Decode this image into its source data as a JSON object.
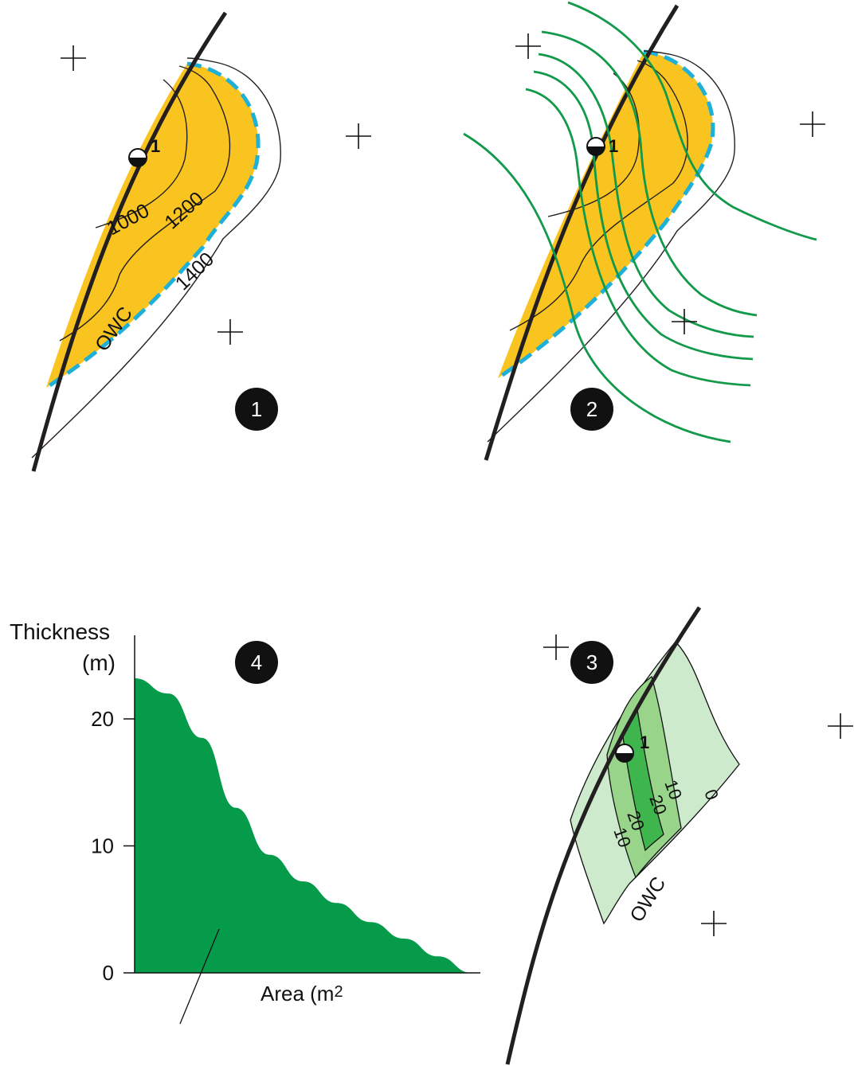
{
  "colors": {
    "oil": "#f9c41f",
    "owc_dash": "#1fb0d8",
    "green_line": "#12994a",
    "fault": "#231f20",
    "contour": "#231f20",
    "area_fill": "#069b4a",
    "iso_light": "#cdebcc",
    "iso_mid": "#98d58b",
    "iso_dark": "#3fb54d",
    "badge": "#111111"
  },
  "panel1": {
    "badge": "1",
    "well_label": "1",
    "contours": [
      "1000",
      "1200",
      "1400"
    ],
    "owc_label": "OWC"
  },
  "panel2": {
    "badge": "2",
    "well_label": "1"
  },
  "panel3": {
    "badge": "3",
    "well_label": "1",
    "isopachs": [
      "0",
      "10",
      "20",
      "20",
      "10"
    ],
    "owc_label": "OWC"
  },
  "panel4": {
    "badge": "4",
    "y_axis_title_line1": "Thickness",
    "y_axis_title_line2": "(m)",
    "x_axis_title": "Area (m",
    "x_axis_title_sup": "2",
    "y_ticks": [
      "0",
      "10",
      "20"
    ]
  },
  "chart_data": {
    "type": "area",
    "title": "",
    "xlabel": "Area (m2",
    "ylabel": "Thickness (m)",
    "ylim": [
      0,
      23
    ],
    "x": [
      0,
      0.1,
      0.2,
      0.3,
      0.4,
      0.5,
      0.6,
      0.7,
      0.8,
      0.9,
      1.0
    ],
    "series": [
      {
        "values": [
          23.2,
          22.0,
          18.5,
          13.0,
          9.3,
          7.2,
          5.5,
          4.0,
          2.7,
          1.3,
          0
        ]
      }
    ],
    "grid": false,
    "legend": "none"
  }
}
